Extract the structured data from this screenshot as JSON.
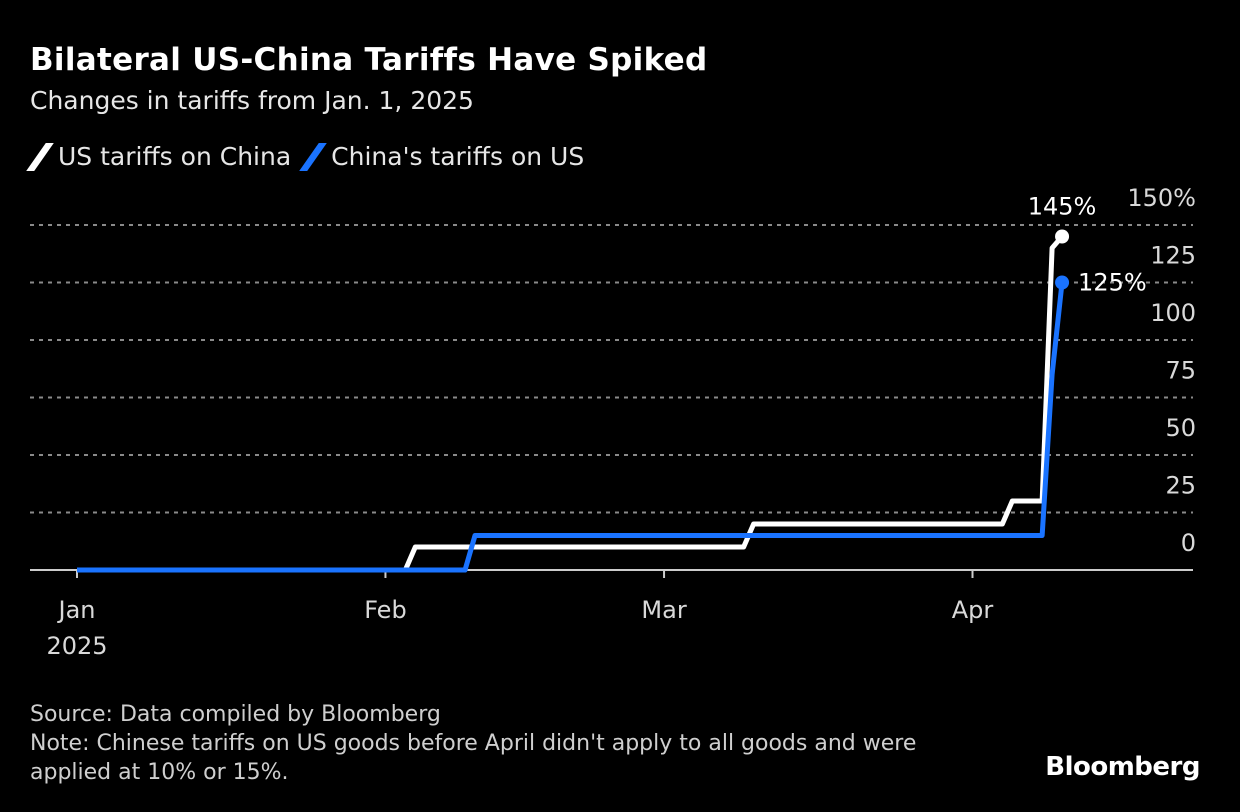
{
  "chart_data": {
    "type": "line",
    "title": "Bilateral US-China Tariffs Have Spiked",
    "subtitle": "Changes in tariffs from Jan. 1, 2025",
    "xlabel": "",
    "ylabel": "",
    "ylim": [
      0,
      150
    ],
    "xlim": [
      "2025-01-01",
      "2025-04-23"
    ],
    "yticks": [
      "0",
      "25",
      "50",
      "75",
      "100",
      "125",
      "150%"
    ],
    "ytick_values": [
      0,
      25,
      50,
      75,
      100,
      125,
      150
    ],
    "xticks": [
      {
        "date": "2025-01-01",
        "label": "Jan",
        "sublabel": "2025"
      },
      {
        "date": "2025-02-01",
        "label": "Feb"
      },
      {
        "date": "2025-03-01",
        "label": "Mar"
      },
      {
        "date": "2025-04-01",
        "label": "Apr"
      }
    ],
    "grid": true,
    "legend_position": "top-left",
    "series": [
      {
        "name": "US tariffs on China",
        "color": "#ffffff",
        "end_label": "145%",
        "points": [
          [
            "2025-01-01",
            0
          ],
          [
            "2025-02-03",
            0
          ],
          [
            "2025-02-04",
            10
          ],
          [
            "2025-03-09",
            10
          ],
          [
            "2025-03-10",
            20
          ],
          [
            "2025-04-04",
            20
          ],
          [
            "2025-04-05",
            30
          ],
          [
            "2025-04-08",
            30
          ],
          [
            "2025-04-09",
            140
          ],
          [
            "2025-04-10",
            145
          ]
        ]
      },
      {
        "name": "China's tariffs on US",
        "color": "#1a73ff",
        "end_label": "125%",
        "points": [
          [
            "2025-01-01",
            0
          ],
          [
            "2025-02-09",
            0
          ],
          [
            "2025-02-10",
            15
          ],
          [
            "2025-04-08",
            15
          ],
          [
            "2025-04-09",
            85
          ],
          [
            "2025-04-10",
            125
          ]
        ]
      }
    ]
  },
  "footer": {
    "source": "Source: Data compiled by Bloomberg",
    "note": "Note: Chinese tariffs on US goods before April didn't apply to all goods and were applied at 10% or 15%.",
    "logo": "Bloomberg"
  }
}
